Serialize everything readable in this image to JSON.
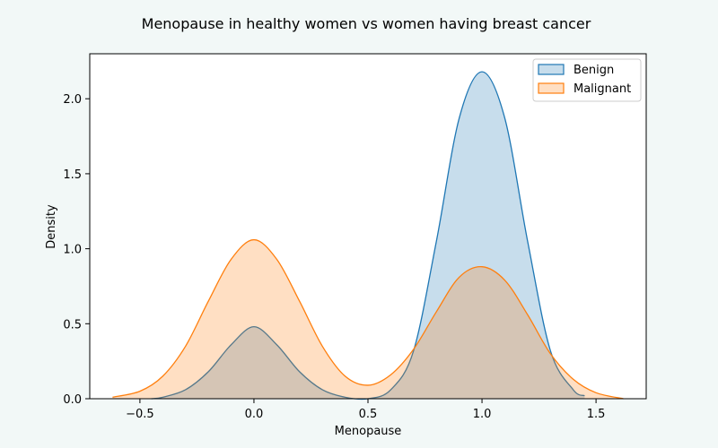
{
  "chart_data": {
    "type": "area",
    "title": "Menopause in healthy women vs women having breast cancer",
    "xlabel": "Menopause",
    "ylabel": "Density",
    "xlim": [
      -0.72,
      1.72
    ],
    "ylim": [
      0,
      2.3
    ],
    "xticks": [
      -0.5,
      0.0,
      0.5,
      1.0,
      1.5
    ],
    "xtick_labels": [
      "−0.5",
      "0.0",
      "0.5",
      "1.0",
      "1.5"
    ],
    "yticks": [
      0.0,
      0.5,
      1.0,
      1.5,
      2.0
    ],
    "ytick_labels": [
      "0.0",
      "0.5",
      "1.0",
      "1.5",
      "2.0"
    ],
    "grid": false,
    "legend_position": "top-right",
    "series": [
      {
        "name": "Benign",
        "color": "#1f77b4",
        "fill": "#1f77b4",
        "x": [
          -0.45,
          -0.4,
          -0.3,
          -0.2,
          -0.1,
          0.0,
          0.1,
          0.2,
          0.3,
          0.4,
          0.5,
          0.6,
          0.7,
          0.8,
          0.9,
          1.0,
          1.1,
          1.2,
          1.3,
          1.4,
          1.45
        ],
        "y": [
          0.0,
          0.01,
          0.06,
          0.18,
          0.36,
          0.48,
          0.36,
          0.18,
          0.06,
          0.01,
          0.0,
          0.06,
          0.32,
          1.05,
          1.87,
          2.18,
          1.87,
          1.05,
          0.32,
          0.06,
          0.02
        ]
      },
      {
        "name": "Malignant",
        "color": "#ff7f0e",
        "fill": "#ff7f0e",
        "x": [
          -0.62,
          -0.5,
          -0.4,
          -0.3,
          -0.2,
          -0.1,
          0.0,
          0.1,
          0.2,
          0.3,
          0.4,
          0.5,
          0.6,
          0.7,
          0.8,
          0.9,
          1.0,
          1.1,
          1.2,
          1.3,
          1.4,
          1.5,
          1.62
        ],
        "y": [
          0.01,
          0.05,
          0.15,
          0.35,
          0.65,
          0.93,
          1.06,
          0.93,
          0.65,
          0.35,
          0.15,
          0.09,
          0.16,
          0.33,
          0.58,
          0.81,
          0.88,
          0.79,
          0.56,
          0.3,
          0.13,
          0.04,
          0.0
        ]
      }
    ]
  }
}
